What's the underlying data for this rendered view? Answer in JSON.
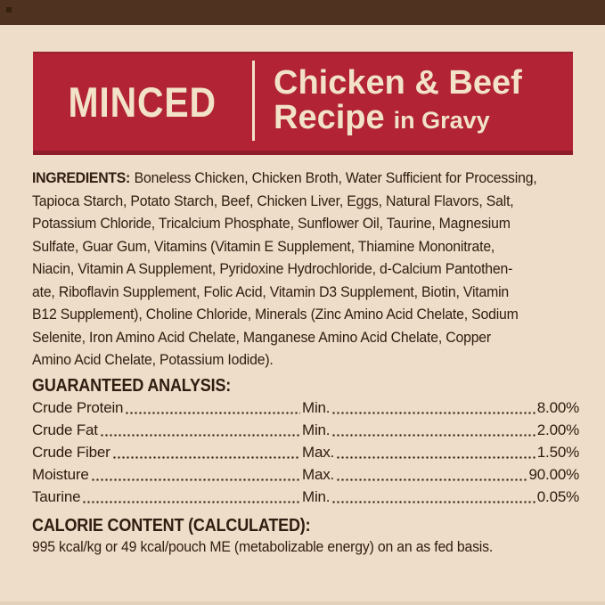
{
  "label": {
    "texture": "MINCED",
    "title_line1": "Chicken & Beef",
    "title_line2_main": "Recipe",
    "title_line2_suffix": "in Gravy"
  },
  "ingredients": {
    "heading": "INGREDIENTS:",
    "lines": [
      "Boneless Chicken, Chicken Broth, Water Sufficient for Processing,",
      "Tapioca Starch, Potato Starch, Beef, Chicken Liver, Eggs, Natural Flavors, Salt,",
      "Potassium Chloride, Tricalcium Phosphate, Sunflower Oil, Taurine, Magnesium",
      "Sulfate, Guar Gum, Vitamins (Vitamin E Supplement, Thiamine Mononitrate,",
      "Niacin, Vitamin A Supplement, Pyridoxine Hydrochloride, d-Calcium Pantothen-",
      "ate, Riboflavin Supplement, Folic Acid, Vitamin D3 Supplement, Biotin, Vitamin",
      "B12 Supplement), Choline Chloride, Minerals (Zinc Amino Acid Chelate, Sodium",
      "Selenite, Iron Amino Acid Chelate, Manganese Amino Acid Chelate, Copper",
      "Amino Acid Chelate, Potassium Iodide)."
    ]
  },
  "guaranteed_analysis": {
    "heading": "GUARANTEED ANALYSIS:",
    "rows": [
      {
        "label": "Crude Protein",
        "qualifier": "Min.",
        "value": "8.00%"
      },
      {
        "label": "Crude Fat",
        "qualifier": "Min.",
        "value": "2.00%"
      },
      {
        "label": "Crude Fiber",
        "qualifier": "Max.",
        "value": "1.50%"
      },
      {
        "label": "Moisture",
        "qualifier": "Max.",
        "value": "90.00%"
      },
      {
        "label": "Taurine",
        "qualifier": "Min.",
        "value": "0.05%"
      }
    ]
  },
  "calorie_content": {
    "heading": "CALORIE CONTENT (CALCULATED):",
    "text": "995 kcal/kg or 49 kcal/pouch ME (metabolizable energy) on an as fed basis."
  },
  "colors": {
    "background": "#eeddc8",
    "top_bar_brown": "#503220",
    "banner_red": "#b12335",
    "banner_edge_dark": "#8e1c2b",
    "banner_text_cream": "#f2e2c8",
    "body_text": "#301c10"
  }
}
